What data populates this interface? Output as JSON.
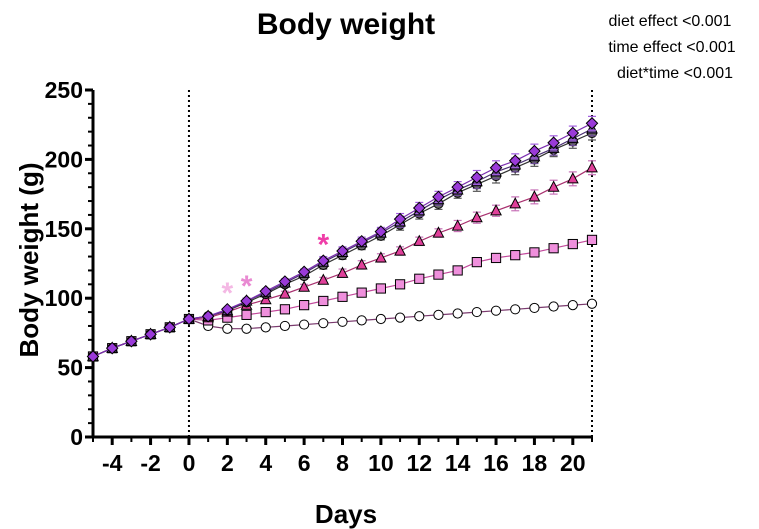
{
  "chart_data": {
    "type": "line",
    "title": "Body weight",
    "xlabel": "Days",
    "ylabel": "Body weight (g)",
    "xlim": [
      -5,
      21
    ],
    "ylim": [
      0,
      250
    ],
    "x_ticks": [
      -4,
      -2,
      0,
      2,
      4,
      6,
      8,
      10,
      12,
      14,
      16,
      18,
      20
    ],
    "y_ticks": [
      0,
      50,
      100,
      150,
      200,
      250
    ],
    "vertical_reference_lines": [
      0,
      21
    ],
    "annotations": [
      "diet effect <0.001",
      "time effect <0.001",
      "diet*time <0.001"
    ],
    "significance_marks": [
      {
        "x": 2,
        "y": 108,
        "label": "*",
        "color": "#f4b8e4"
      },
      {
        "x": 3,
        "y": 113,
        "label": "*",
        "color": "#e98ad2"
      },
      {
        "x": 7,
        "y": 143,
        "label": "*",
        "color": "#ef3ea8"
      }
    ],
    "series": [
      {
        "marker": "circle",
        "fill": "#ffffff",
        "line_color": "#7a3a6e",
        "error_color": "#7a3a6e",
        "x": [
          -5,
          -4,
          -3,
          -2,
          -1,
          0,
          1,
          2,
          3,
          4,
          5,
          6,
          7,
          8,
          9,
          10,
          11,
          12,
          13,
          14,
          15,
          16,
          17,
          18,
          19,
          20,
          21
        ],
        "values": [
          58,
          64,
          69,
          74,
          79,
          85,
          80,
          78,
          78,
          79,
          80,
          81,
          82,
          83,
          84,
          85,
          86,
          87,
          88,
          89,
          90,
          91,
          92,
          93,
          94,
          95,
          96
        ],
        "error": [
          1,
          1,
          1,
          1,
          1,
          1,
          1,
          1,
          1,
          1,
          1,
          1,
          1,
          1,
          1,
          1,
          1,
          1,
          1,
          1,
          1,
          1,
          1,
          1,
          1,
          1,
          2
        ]
      },
      {
        "marker": "square",
        "fill": "#ef8fdc",
        "line_color": "#c2489b",
        "error_color": "#c2489b",
        "x": [
          -5,
          -4,
          -3,
          -2,
          -1,
          0,
          1,
          2,
          3,
          4,
          5,
          6,
          7,
          8,
          9,
          10,
          11,
          12,
          13,
          14,
          15,
          16,
          17,
          18,
          19,
          20,
          21
        ],
        "values": [
          58,
          64,
          69,
          74,
          79,
          85,
          84,
          86,
          88,
          90,
          92,
          95,
          98,
          101,
          104,
          107,
          110,
          114,
          117,
          120,
          126,
          129,
          131,
          133,
          136,
          139,
          142
        ],
        "error": [
          1,
          1,
          1,
          1,
          1,
          1,
          1,
          1,
          1,
          1,
          1,
          1,
          1,
          1,
          2,
          2,
          2,
          2,
          2,
          2,
          3,
          3,
          3,
          3,
          3,
          3,
          3
        ]
      },
      {
        "marker": "triangle",
        "fill": "#e0409a",
        "line_color": "#a8306f",
        "error_color": "#c873b8",
        "x": [
          -5,
          -4,
          -3,
          -2,
          -1,
          0,
          1,
          2,
          3,
          4,
          5,
          6,
          7,
          8,
          9,
          10,
          11,
          12,
          13,
          14,
          15,
          16,
          17,
          18,
          19,
          20,
          21
        ],
        "values": [
          58,
          64,
          69,
          74,
          79,
          85,
          86,
          90,
          95,
          99,
          103,
          108,
          113,
          118,
          124,
          129,
          134,
          141,
          147,
          152,
          158,
          163,
          168,
          173,
          180,
          186,
          194
        ],
        "error": [
          1,
          1,
          1,
          1,
          1,
          1,
          1,
          1,
          1,
          2,
          2,
          2,
          2,
          3,
          3,
          3,
          3,
          3,
          3,
          4,
          4,
          4,
          5,
          5,
          5,
          5,
          5
        ]
      },
      {
        "marker": "circle",
        "fill": "#6a6a6a",
        "line_color": "#333333",
        "error_color": "#555555",
        "x": [
          -5,
          -4,
          -3,
          -2,
          -1,
          0,
          1,
          2,
          3,
          4,
          5,
          6,
          7,
          8,
          9,
          10,
          11,
          12,
          13,
          14,
          15,
          16,
          17,
          18,
          19,
          20,
          21
        ],
        "values": [
          58,
          64,
          69,
          74,
          79,
          85,
          87,
          91,
          97,
          103,
          110,
          116,
          124,
          131,
          138,
          145,
          153,
          161,
          168,
          176,
          182,
          188,
          194,
          200,
          207,
          213,
          219
        ],
        "error": [
          1,
          1,
          1,
          1,
          1,
          1,
          1,
          1,
          2,
          2,
          2,
          2,
          3,
          3,
          3,
          3,
          4,
          4,
          4,
          4,
          5,
          5,
          5,
          5,
          5,
          5,
          5
        ]
      },
      {
        "marker": "triangle",
        "fill": "#6a4a92",
        "line_color": "#4a2f72",
        "error_color": "#6a4a92",
        "x": [
          -5,
          -4,
          -3,
          -2,
          -1,
          0,
          1,
          2,
          3,
          4,
          5,
          6,
          7,
          8,
          9,
          10,
          11,
          12,
          13,
          14,
          15,
          16,
          17,
          18,
          19,
          20,
          21
        ],
        "values": [
          58,
          64,
          69,
          74,
          79,
          85,
          87,
          91,
          98,
          104,
          111,
          118,
          126,
          133,
          140,
          147,
          155,
          163,
          171,
          178,
          184,
          191,
          196,
          202,
          208,
          215,
          222
        ],
        "error": [
          1,
          1,
          1,
          1,
          1,
          1,
          1,
          1,
          2,
          2,
          2,
          2,
          3,
          3,
          3,
          3,
          4,
          4,
          4,
          4,
          5,
          5,
          5,
          5,
          5,
          5,
          5
        ]
      },
      {
        "marker": "diamond",
        "fill": "#9a3ad8",
        "line_color": "#7b2fb0",
        "error_color": "#a25de0",
        "x": [
          -5,
          -4,
          -3,
          -2,
          -1,
          0,
          1,
          2,
          3,
          4,
          5,
          6,
          7,
          8,
          9,
          10,
          11,
          12,
          13,
          14,
          15,
          16,
          17,
          18,
          19,
          20,
          21
        ],
        "values": [
          58,
          64,
          69,
          74,
          79,
          85,
          87,
          92,
          98,
          105,
          112,
          119,
          127,
          134,
          141,
          148,
          157,
          165,
          173,
          180,
          187,
          194,
          199,
          206,
          212,
          219,
          226
        ],
        "error": [
          1,
          1,
          1,
          1,
          1,
          1,
          1,
          1,
          2,
          2,
          2,
          2,
          3,
          3,
          3,
          3,
          4,
          4,
          4,
          4,
          5,
          5,
          5,
          5,
          5,
          5,
          5
        ]
      }
    ]
  }
}
